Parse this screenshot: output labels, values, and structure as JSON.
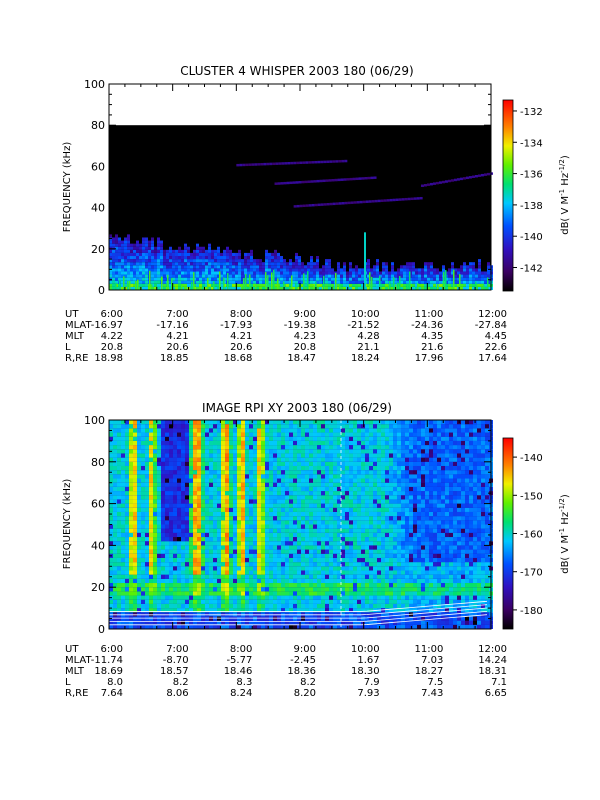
{
  "chart_data": [
    {
      "type": "heatmap",
      "title": "CLUSTER 4 WHISPER 2003 180 (06/29)",
      "ylabel": "FREQUENCY (kHz)",
      "ylim": [
        0,
        100
      ],
      "yticks": [
        "0",
        "20",
        "40",
        "60",
        "80",
        "100"
      ],
      "x_ticks": [
        "6:00",
        "7:00",
        "8:00",
        "9:00",
        "10:00",
        "11:00",
        "12:00"
      ],
      "data_ceiling_khz": 80,
      "colorbar": {
        "label_parts": [
          "dB( V M",
          "-1",
          " Hz",
          "-1/2",
          ")"
        ],
        "ticks": [
          "-132",
          "-134",
          "-136",
          "-138",
          "-140",
          "-142"
        ],
        "range": [
          -143.5,
          -131.3
        ]
      },
      "ephemeris": {
        "labels": [
          "UT",
          "MLAT",
          "MLT",
          "L",
          "R,RE"
        ],
        "rows": [
          [
            "6:00",
            "7:00",
            "8:00",
            "9:00",
            "10:00",
            "11:00",
            "12:00"
          ],
          [
            "-16.97",
            "-17.16",
            "-17.93",
            "-19.38",
            "-21.52",
            "-24.36",
            "-27.84"
          ],
          [
            "4.22",
            "4.21",
            "4.21",
            "4.23",
            "4.28",
            "4.35",
            "4.45"
          ],
          [
            "20.8",
            "20.6",
            "20.6",
            "20.8",
            "21.1",
            "21.6",
            "22.6"
          ],
          [
            "18.98",
            "18.85",
            "18.68",
            "18.47",
            "18.24",
            "17.96",
            "17.64"
          ]
        ]
      }
    },
    {
      "type": "heatmap",
      "title": "IMAGE RPI XY 2003 180 (06/29)",
      "ylabel": "FREQUENCY (kHz)",
      "ylim": [
        0,
        100
      ],
      "yticks": [
        "0",
        "20",
        "40",
        "60",
        "80",
        "100"
      ],
      "x_ticks": [
        "6:00",
        "7:00",
        "8:00",
        "9:00",
        "10:00",
        "11:00",
        "12:00"
      ],
      "colorbar": {
        "label_parts": [
          "dB( V M",
          "-1",
          " Hz",
          "-1/2",
          ")"
        ],
        "ticks": [
          "-140",
          "-150",
          "-160",
          "-170",
          "-180"
        ],
        "range": [
          -185,
          -135
        ]
      },
      "ephemeris": {
        "labels": [
          "UT",
          "MLAT",
          "MLT",
          "L",
          "R,RE"
        ],
        "rows": [
          [
            "6:00",
            "7:00",
            "8:00",
            "9:00",
            "10:00",
            "11:00",
            "12:00"
          ],
          [
            "-11.74",
            "-8.70",
            "-5.77",
            "-2.45",
            "1.67",
            "7.03",
            "14.24"
          ],
          [
            "18.69",
            "18.57",
            "18.46",
            "18.36",
            "18.30",
            "18.27",
            "18.31"
          ],
          [
            "8.0",
            "8.2",
            "8.3",
            "8.2",
            "7.9",
            "7.5",
            "7.1"
          ],
          [
            "7.64",
            "8.06",
            "8.24",
            "8.20",
            "7.93",
            "7.43",
            "6.65"
          ]
        ]
      }
    }
  ]
}
